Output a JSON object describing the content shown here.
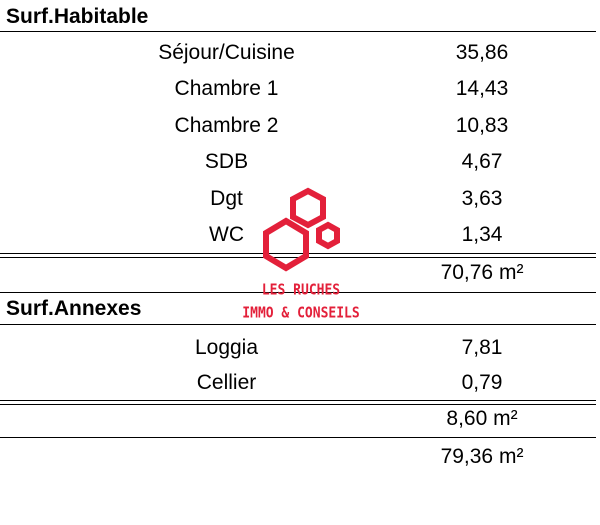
{
  "habitable": {
    "title": "Surf.Habitable",
    "rows": [
      {
        "label": "Séjour/Cuisine",
        "value": "35,86"
      },
      {
        "label": "Chambre 1",
        "value": "14,43"
      },
      {
        "label": "Chambre 2",
        "value": "10,83"
      },
      {
        "label": "SDB",
        "value": "4,67"
      },
      {
        "label": "Dgt",
        "value": "3,63"
      },
      {
        "label": "WC",
        "value": "1,34"
      }
    ],
    "total": "70,76 m²"
  },
  "annexes": {
    "title": "Surf.Annexes",
    "rows": [
      {
        "label": "Loggia",
        "value": "7,81"
      },
      {
        "label": "Cellier",
        "value": "0,79"
      }
    ],
    "total": "8,60 m²"
  },
  "grand_total": "79,36 m²",
  "watermark": {
    "line1": "LES RUCHES",
    "line2": "IMMO & CONSEILS",
    "color": "#e3203a",
    "icon": "hexagon-cluster-logo"
  }
}
